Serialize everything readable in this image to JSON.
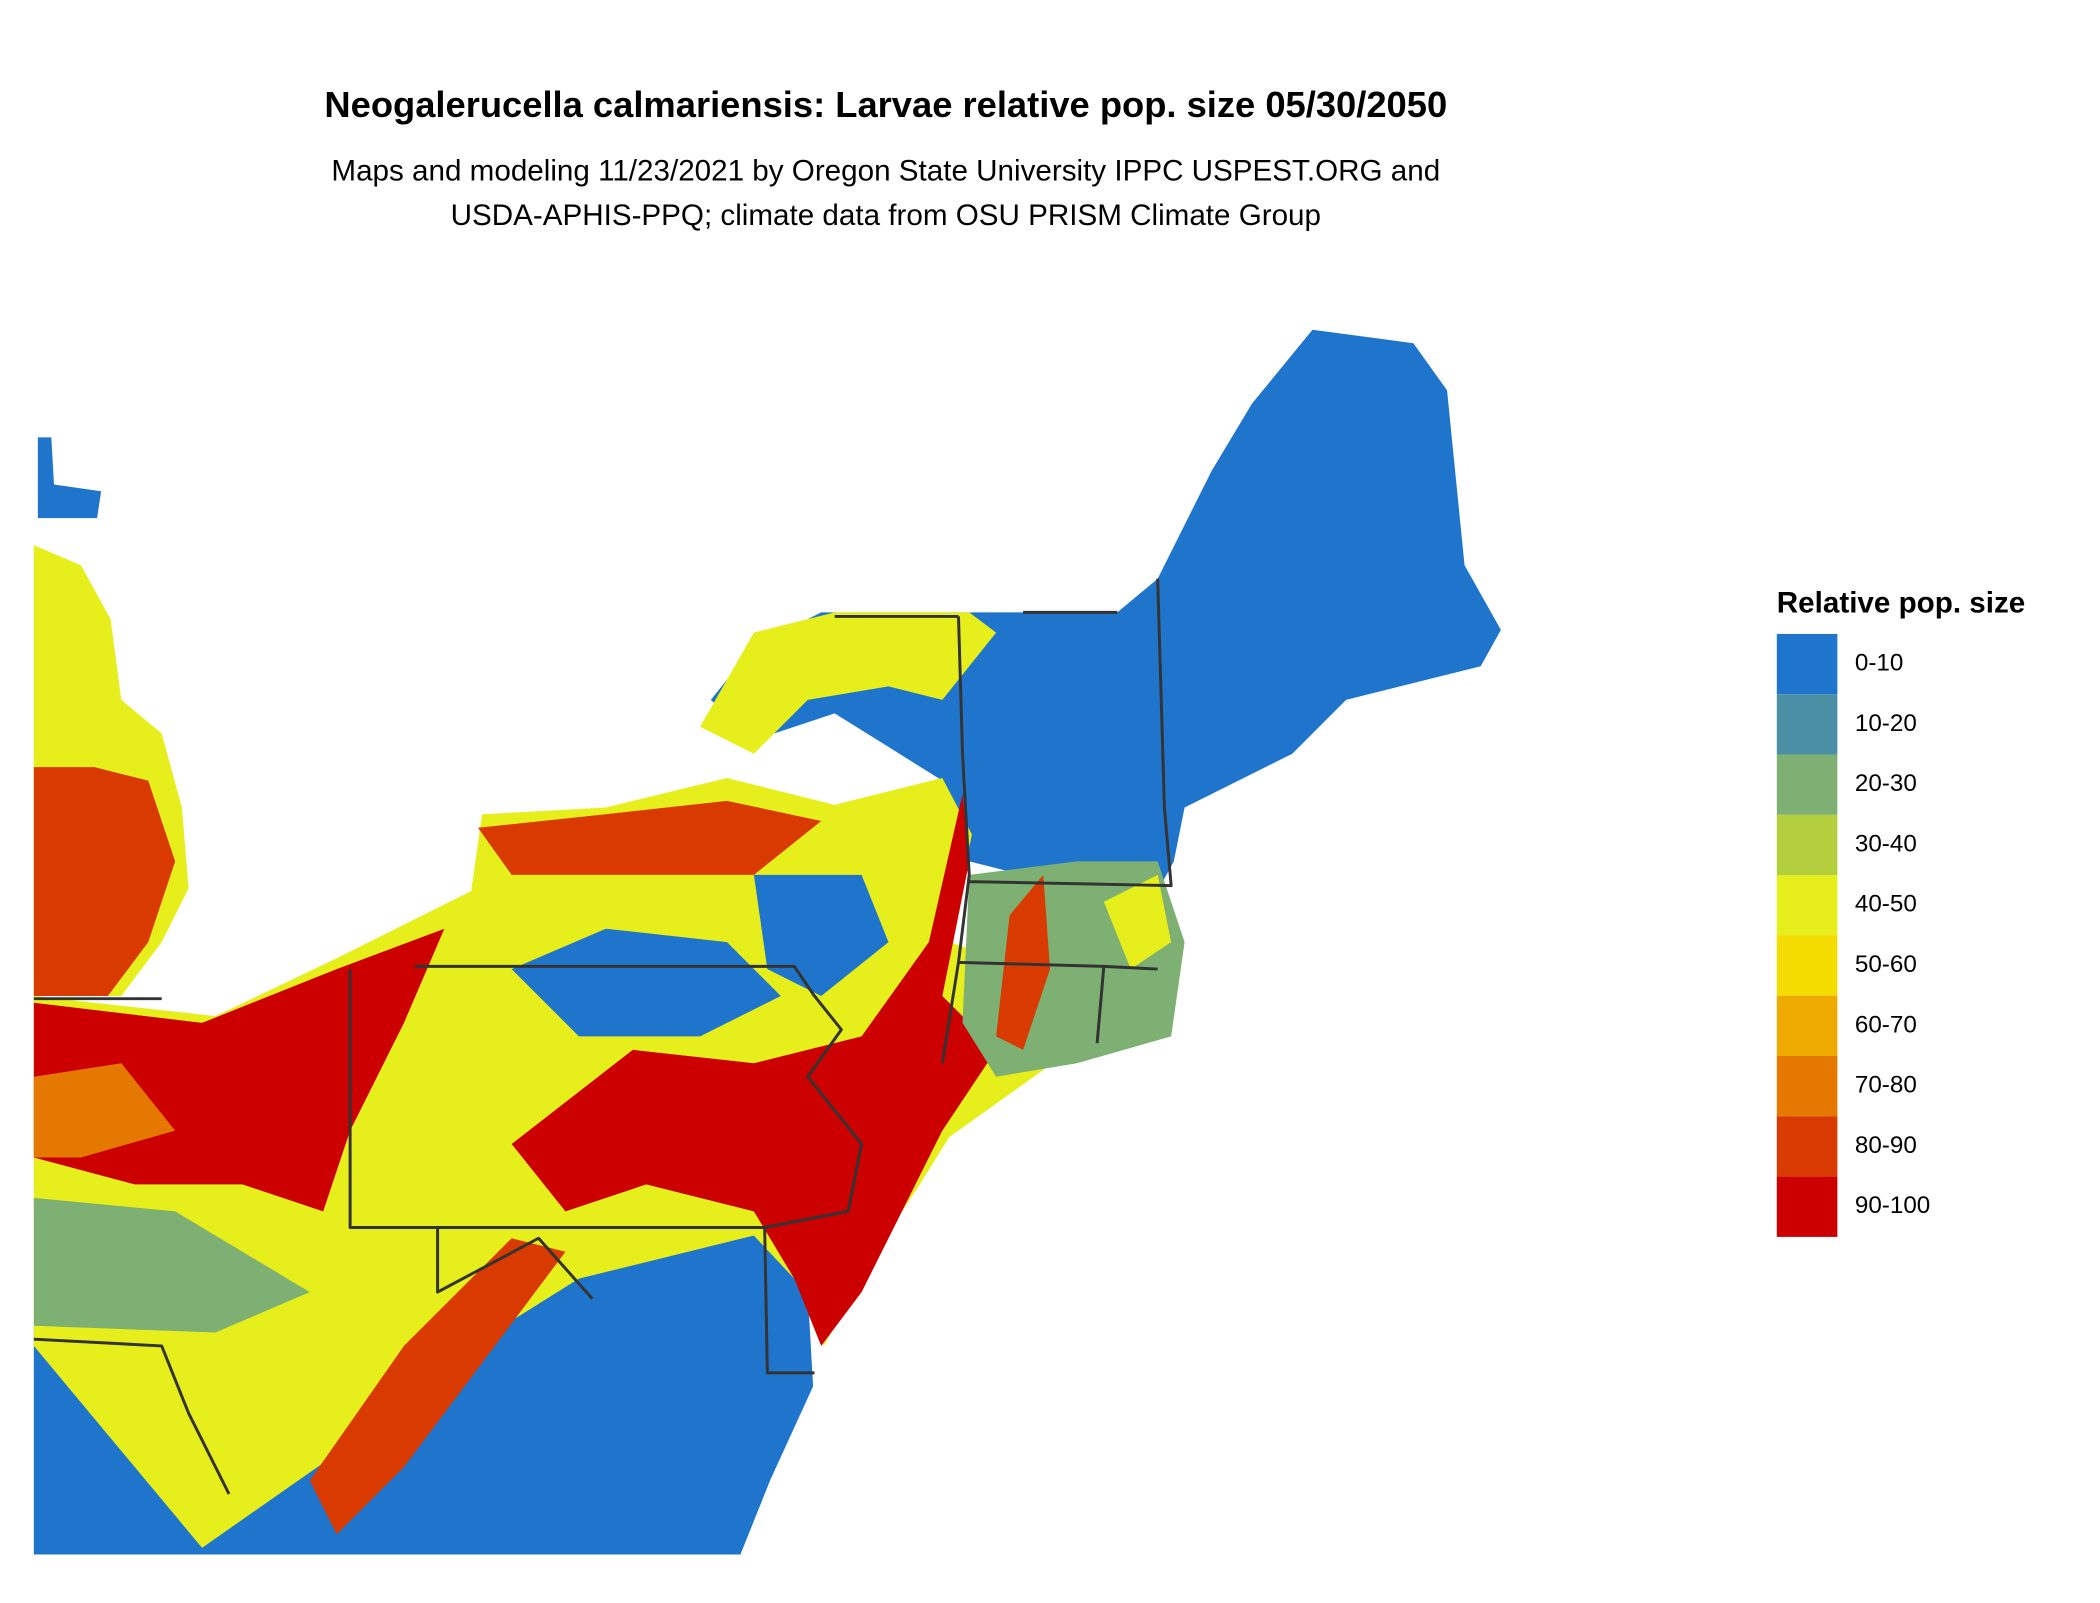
{
  "header": {
    "title": "Neogalerucella calmariensis: Larvae relative pop. size 05/30/2050",
    "subtitle": [
      "Maps and modeling 11/23/2021 by Oregon State University IPPC USPEST.ORG and",
      "USDA-APHIS-PPQ; climate data from OSU PRISM Climate Group"
    ]
  },
  "legend": {
    "title": "Relative pop. size",
    "items": [
      {
        "label": "0-10",
        "color": "#1f75cc"
      },
      {
        "label": "10-20",
        "color": "#4a8fa3"
      },
      {
        "label": "20-30",
        "color": "#7db072"
      },
      {
        "label": "30-40",
        "color": "#b3cf3e"
      },
      {
        "label": "40-50",
        "color": "#e6ee1b"
      },
      {
        "label": "50-60",
        "color": "#f5dc00"
      },
      {
        "label": "60-70",
        "color": "#efaa00"
      },
      {
        "label": "70-80",
        "color": "#e47800"
      },
      {
        "label": "80-90",
        "color": "#d83a00"
      },
      {
        "label": "90-100",
        "color": "#cd0000"
      }
    ]
  }
}
